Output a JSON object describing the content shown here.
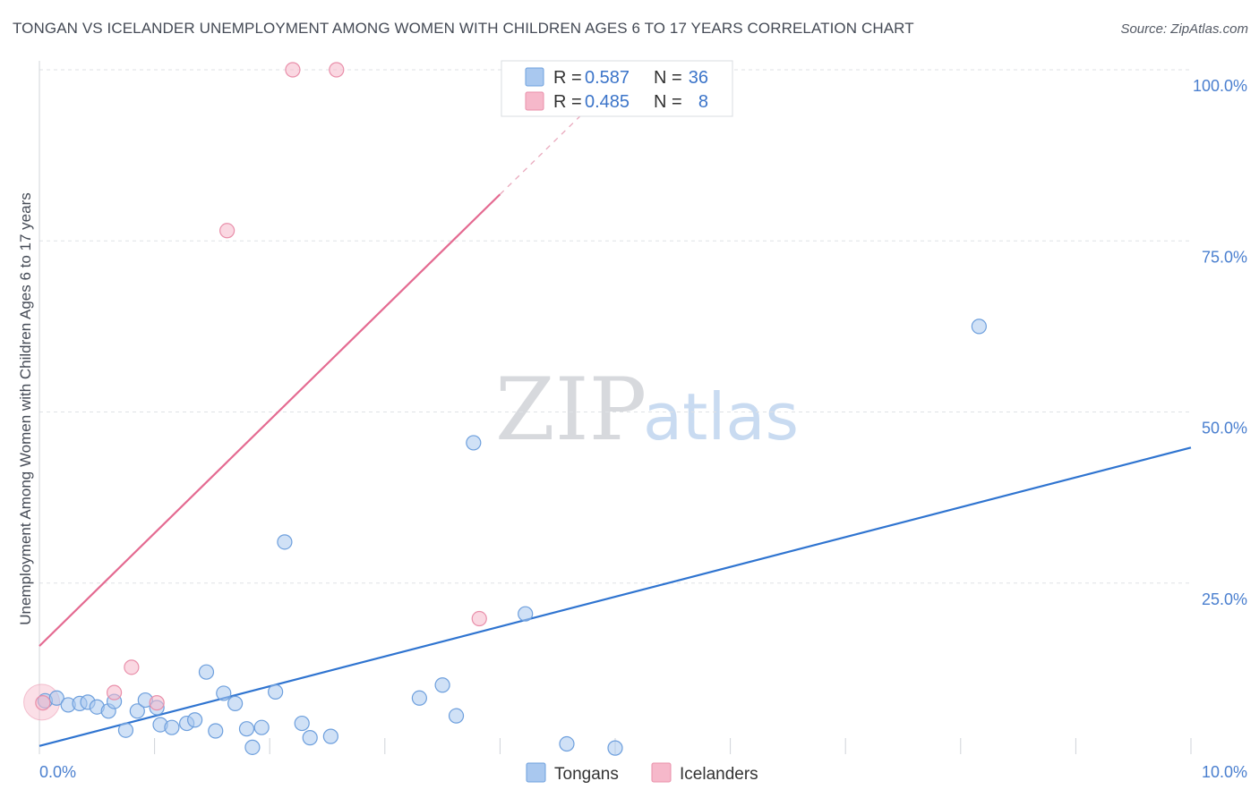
{
  "header": {
    "title": "TONGAN VS ICELANDER UNEMPLOYMENT AMONG WOMEN WITH CHILDREN AGES 6 TO 17 YEARS CORRELATION CHART",
    "source": "Source: ZipAtlas.com"
  },
  "watermark": {
    "zip": "ZIP",
    "atlas": "atlas"
  },
  "legend": {
    "rows": [
      {
        "r_label": "R =",
        "r_value": "0.587",
        "n_label": "N =",
        "n_value": "36",
        "color": "#a9c8ef"
      },
      {
        "r_label": "R =",
        "r_value": "0.485",
        "n_label": "N =",
        "n_value": "8",
        "color": "#f6b8ca"
      }
    ]
  },
  "chart_data": {
    "type": "scatter",
    "title": "TONGAN VS ICELANDER UNEMPLOYMENT AMONG WOMEN WITH CHILDREN AGES 6 TO 17 YEARS CORRELATION CHART",
    "xlabel": "",
    "ylabel": "Unemployment Among Women with Children Ages 6 to 17 years",
    "xlim": [
      0,
      10
    ],
    "ylim": [
      0,
      100
    ],
    "x_tick_labels": [
      "0.0%",
      "10.0%"
    ],
    "y_tick_labels": [
      "100.0%",
      "75.0%",
      "50.0%",
      "25.0%"
    ],
    "y_tick_values": [
      100,
      75,
      50,
      25
    ],
    "grid": true,
    "legend_position": "top-center",
    "series": [
      {
        "name": "Tongans",
        "color": "#a9c8ef",
        "stroke": "#6d9fdd",
        "trend_color": "#2f74d0",
        "trend": {
          "x": [
            0,
            10
          ],
          "y": [
            1.2,
            44.8
          ]
        },
        "points": [
          {
            "x": 0.05,
            "y": 7.8
          },
          {
            "x": 0.15,
            "y": 8.2
          },
          {
            "x": 0.25,
            "y": 7.2
          },
          {
            "x": 0.35,
            "y": 7.4
          },
          {
            "x": 0.42,
            "y": 7.6
          },
          {
            "x": 0.5,
            "y": 6.9
          },
          {
            "x": 0.6,
            "y": 6.3
          },
          {
            "x": 0.65,
            "y": 7.7
          },
          {
            "x": 0.75,
            "y": 3.5
          },
          {
            "x": 0.85,
            "y": 6.3
          },
          {
            "x": 0.92,
            "y": 7.9
          },
          {
            "x": 1.02,
            "y": 6.8
          },
          {
            "x": 1.05,
            "y": 4.3
          },
          {
            "x": 1.15,
            "y": 3.9
          },
          {
            "x": 1.28,
            "y": 4.5
          },
          {
            "x": 1.35,
            "y": 5.0
          },
          {
            "x": 1.45,
            "y": 12.0
          },
          {
            "x": 1.53,
            "y": 3.4
          },
          {
            "x": 1.6,
            "y": 8.9
          },
          {
            "x": 1.7,
            "y": 7.4
          },
          {
            "x": 1.8,
            "y": 3.7
          },
          {
            "x": 1.85,
            "y": 1.0
          },
          {
            "x": 1.93,
            "y": 3.9
          },
          {
            "x": 2.05,
            "y": 9.1
          },
          {
            "x": 2.13,
            "y": 31.0
          },
          {
            "x": 2.28,
            "y": 4.5
          },
          {
            "x": 2.35,
            "y": 2.4
          },
          {
            "x": 2.53,
            "y": 2.6
          },
          {
            "x": 3.3,
            "y": 8.2
          },
          {
            "x": 3.5,
            "y": 10.1
          },
          {
            "x": 3.62,
            "y": 5.6
          },
          {
            "x": 3.77,
            "y": 45.5
          },
          {
            "x": 4.22,
            "y": 20.5
          },
          {
            "x": 4.58,
            "y": 1.5
          },
          {
            "x": 5.0,
            "y": 0.9
          },
          {
            "x": 8.16,
            "y": 62.5
          }
        ]
      },
      {
        "name": "Icelanders",
        "color": "#f6b8ca",
        "stroke": "#e98faa",
        "trend_color": "#e46a91",
        "trend": {
          "x": [
            0,
            4.0
          ],
          "y": [
            15.8,
            81.8
          ]
        },
        "trend_extension": {
          "x": [
            4.0,
            4.7
          ],
          "y": [
            81.8,
            93.3
          ]
        },
        "points": [
          {
            "x": 0.03,
            "y": 7.5
          },
          {
            "x": 0.65,
            "y": 9.0
          },
          {
            "x": 0.8,
            "y": 12.7
          },
          {
            "x": 1.02,
            "y": 7.5
          },
          {
            "x": 1.63,
            "y": 76.5
          },
          {
            "x": 2.2,
            "y": 100.0
          },
          {
            "x": 2.58,
            "y": 100.0
          },
          {
            "x": 3.82,
            "y": 19.8
          }
        ]
      }
    ]
  }
}
